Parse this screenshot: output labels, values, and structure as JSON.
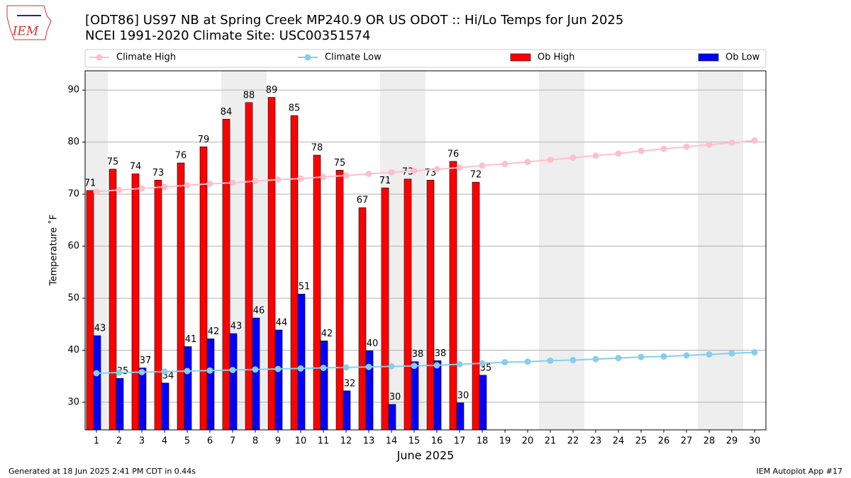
{
  "chart_data": {
    "type": "bar",
    "logo": "IEM",
    "title": "[ODT86] US97 NB at Spring Creek MP240.9  OR US ODOT :: Hi/Lo Temps for Jun 2025",
    "subtitle": "NCEI 1991-2020 Climate Site: USC00351574",
    "x_label": "June 2025",
    "y_label": "Temperature ˚F",
    "footer_left": "Generated at 18 Jun 2025 2:41 PM CDT in 0.44s",
    "footer_right": "IEM Autoplot App #17",
    "categories": [
      "1",
      "2",
      "3",
      "4",
      "5",
      "6",
      "7",
      "8",
      "9",
      "10",
      "11",
      "12",
      "13",
      "14",
      "15",
      "16",
      "17",
      "18",
      "19",
      "20",
      "21",
      "22",
      "23",
      "24",
      "25",
      "26",
      "27",
      "28",
      "29",
      "30"
    ],
    "ylim": [
      24.7,
      93.7
    ],
    "yticks": [
      30,
      40,
      50,
      60,
      70,
      80,
      90
    ],
    "grid": true,
    "series": [
      {
        "name": "Climate High",
        "type": "line",
        "color": "#ffc0cb",
        "values": [
          70.5,
          70.8,
          71.1,
          71.4,
          71.7,
          72.0,
          72.2,
          72.5,
          72.8,
          73.0,
          73.3,
          73.6,
          73.9,
          74.2,
          74.5,
          74.8,
          75.1,
          75.5,
          75.8,
          76.2,
          76.6,
          77.0,
          77.4,
          77.8,
          78.3,
          78.7,
          79.1,
          79.5,
          79.9,
          80.3
        ]
      },
      {
        "name": "Climate Low",
        "type": "line",
        "color": "#87ceeb",
        "values": [
          35.6,
          35.7,
          35.8,
          35.9,
          36.0,
          36.1,
          36.2,
          36.3,
          36.4,
          36.5,
          36.6,
          36.7,
          36.8,
          36.9,
          37.0,
          37.1,
          37.3,
          37.5,
          37.7,
          37.8,
          38.0,
          38.1,
          38.3,
          38.5,
          38.7,
          38.8,
          39.0,
          39.2,
          39.4,
          39.6
        ]
      },
      {
        "name": "Ob High",
        "type": "bar",
        "color": "#ff0000",
        "values": [
          70.7,
          74.8,
          73.9,
          72.7,
          76.0,
          79.1,
          84.4,
          87.6,
          88.6,
          85.1,
          77.5,
          74.6,
          67.4,
          71.2,
          72.9,
          72.7,
          76.3,
          72.3,
          null,
          null,
          null,
          null,
          null,
          null,
          null,
          null,
          null,
          null,
          null,
          null
        ],
        "value_labels": [
          "71",
          "75",
          "74",
          "73",
          "76",
          "79",
          "84",
          "88",
          "89",
          "85",
          "78",
          "75",
          "67",
          "71",
          "73",
          "73",
          "76",
          "72",
          null,
          null,
          null,
          null,
          null,
          null,
          null,
          null,
          null,
          null,
          null,
          null
        ]
      },
      {
        "name": "Ob Low",
        "type": "bar",
        "color": "#0000ff",
        "values": [
          42.8,
          34.6,
          36.6,
          33.7,
          40.7,
          42.2,
          43.2,
          46.2,
          43.9,
          50.8,
          41.8,
          32.2,
          39.9,
          29.6,
          37.8,
          38.0,
          29.9,
          35.2,
          null,
          null,
          null,
          null,
          null,
          null,
          null,
          null,
          null,
          null,
          null,
          null
        ],
        "value_labels": [
          "43",
          "35",
          "37",
          "34",
          "41",
          "42",
          "43",
          "46",
          "44",
          "51",
          "42",
          "32",
          "40",
          "30",
          "38",
          "38",
          "30",
          "35",
          null,
          null,
          null,
          null,
          null,
          null,
          null,
          null,
          null,
          null,
          null,
          null
        ]
      }
    ]
  }
}
